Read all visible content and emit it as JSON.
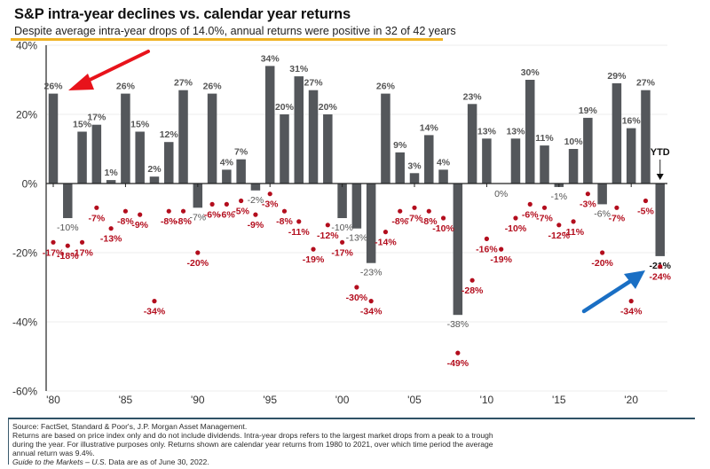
{
  "header": {
    "title": "S&P intra-year declines vs. calendar year returns",
    "subtitle": "Despite average intra-year drops of 14.0%, annual returns were positive in 32 of 42 years"
  },
  "colors": {
    "bar": "#54575b",
    "dot": "#b30d1d",
    "dot_label": "#b30d1d",
    "bar_label": "#555555",
    "accent_rule": "#f0b323",
    "red_arrow": "#e8131b",
    "blue_arrow": "#1a6fc4"
  },
  "chart_data": {
    "type": "bar",
    "title": "S&P intra-year declines vs. calendar year returns",
    "subtitle": "Despite average intra-year drops of 14.0%, annual returns were positive in 32 of 42 years",
    "xlabel": "",
    "ylabel": "",
    "ylim": [
      -60,
      40
    ],
    "yticks": [
      40,
      20,
      0,
      -20,
      -40,
      -60
    ],
    "ytick_labels": [
      "40%",
      "20%",
      "0%",
      "-20%",
      "-40%",
      "-60%"
    ],
    "grid": true,
    "x": [
      1980,
      1981,
      1982,
      1983,
      1984,
      1985,
      1986,
      1987,
      1988,
      1989,
      1990,
      1991,
      1992,
      1993,
      1994,
      1995,
      1996,
      1997,
      1998,
      1999,
      2000,
      2001,
      2002,
      2003,
      2004,
      2005,
      2006,
      2007,
      2008,
      2009,
      2010,
      2011,
      2012,
      2013,
      2014,
      2015,
      2016,
      2017,
      2018,
      2019,
      2020,
      2021,
      2022
    ],
    "xtick_years": [
      1980,
      1985,
      1990,
      1995,
      2000,
      2005,
      2010,
      2015,
      2020
    ],
    "xtick_labels": [
      "'80",
      "'85",
      "'90",
      "'95",
      "'00",
      "'05",
      "'10",
      "'15",
      "'20"
    ],
    "series": [
      {
        "name": "Calendar year return",
        "kind": "bar",
        "values": [
          26,
          -10,
          15,
          17,
          1,
          26,
          15,
          2,
          12,
          27,
          -7,
          26,
          4,
          7,
          -2,
          34,
          20,
          31,
          27,
          20,
          -10,
          -13,
          -23,
          26,
          9,
          3,
          14,
          4,
          -38,
          23,
          13,
          0,
          13,
          30,
          11,
          -1,
          10,
          19,
          -6,
          29,
          16,
          27,
          -21
        ]
      },
      {
        "name": "Intra-year decline",
        "kind": "scatter",
        "values": [
          -17,
          -18,
          -17,
          -7,
          -13,
          -8,
          -9,
          -34,
          -8,
          -8,
          -20,
          -6,
          -6,
          -5,
          -9,
          -3,
          -8,
          -11,
          -19,
          -12,
          -17,
          -30,
          -34,
          -14,
          -8,
          -7,
          -8,
          -10,
          -49,
          -28,
          -16,
          -19,
          -10,
          -6,
          -7,
          -12,
          -11,
          -3,
          -20,
          -7,
          -34,
          -5,
          -24
        ]
      }
    ],
    "annotations": [
      {
        "text": "YTD",
        "target_year": 2022,
        "kind": "down-arrow"
      },
      {
        "text": "",
        "target_year": 1980,
        "kind": "red-arrow"
      },
      {
        "text": "",
        "target_year": 2022,
        "kind": "blue-arrow"
      }
    ],
    "value_suffix": "%"
  },
  "footnote": {
    "line1": "Source: FactSet, Standard & Poor's, J.P. Morgan Asset Management.",
    "line2": "Returns are based on price index only and do not include dividends. Intra-year drops refers to the largest market drops from a peak to a trough",
    "line3": "during the year. For illustrative purposes only. Returns shown are calendar year returns from 1980 to 2021, over which time period the average",
    "line4": "annual return was 9.4%.",
    "guide_italic": "Guide to the Markets – U.S.",
    "guide_rest": " Data are as of June 30, 2022."
  }
}
